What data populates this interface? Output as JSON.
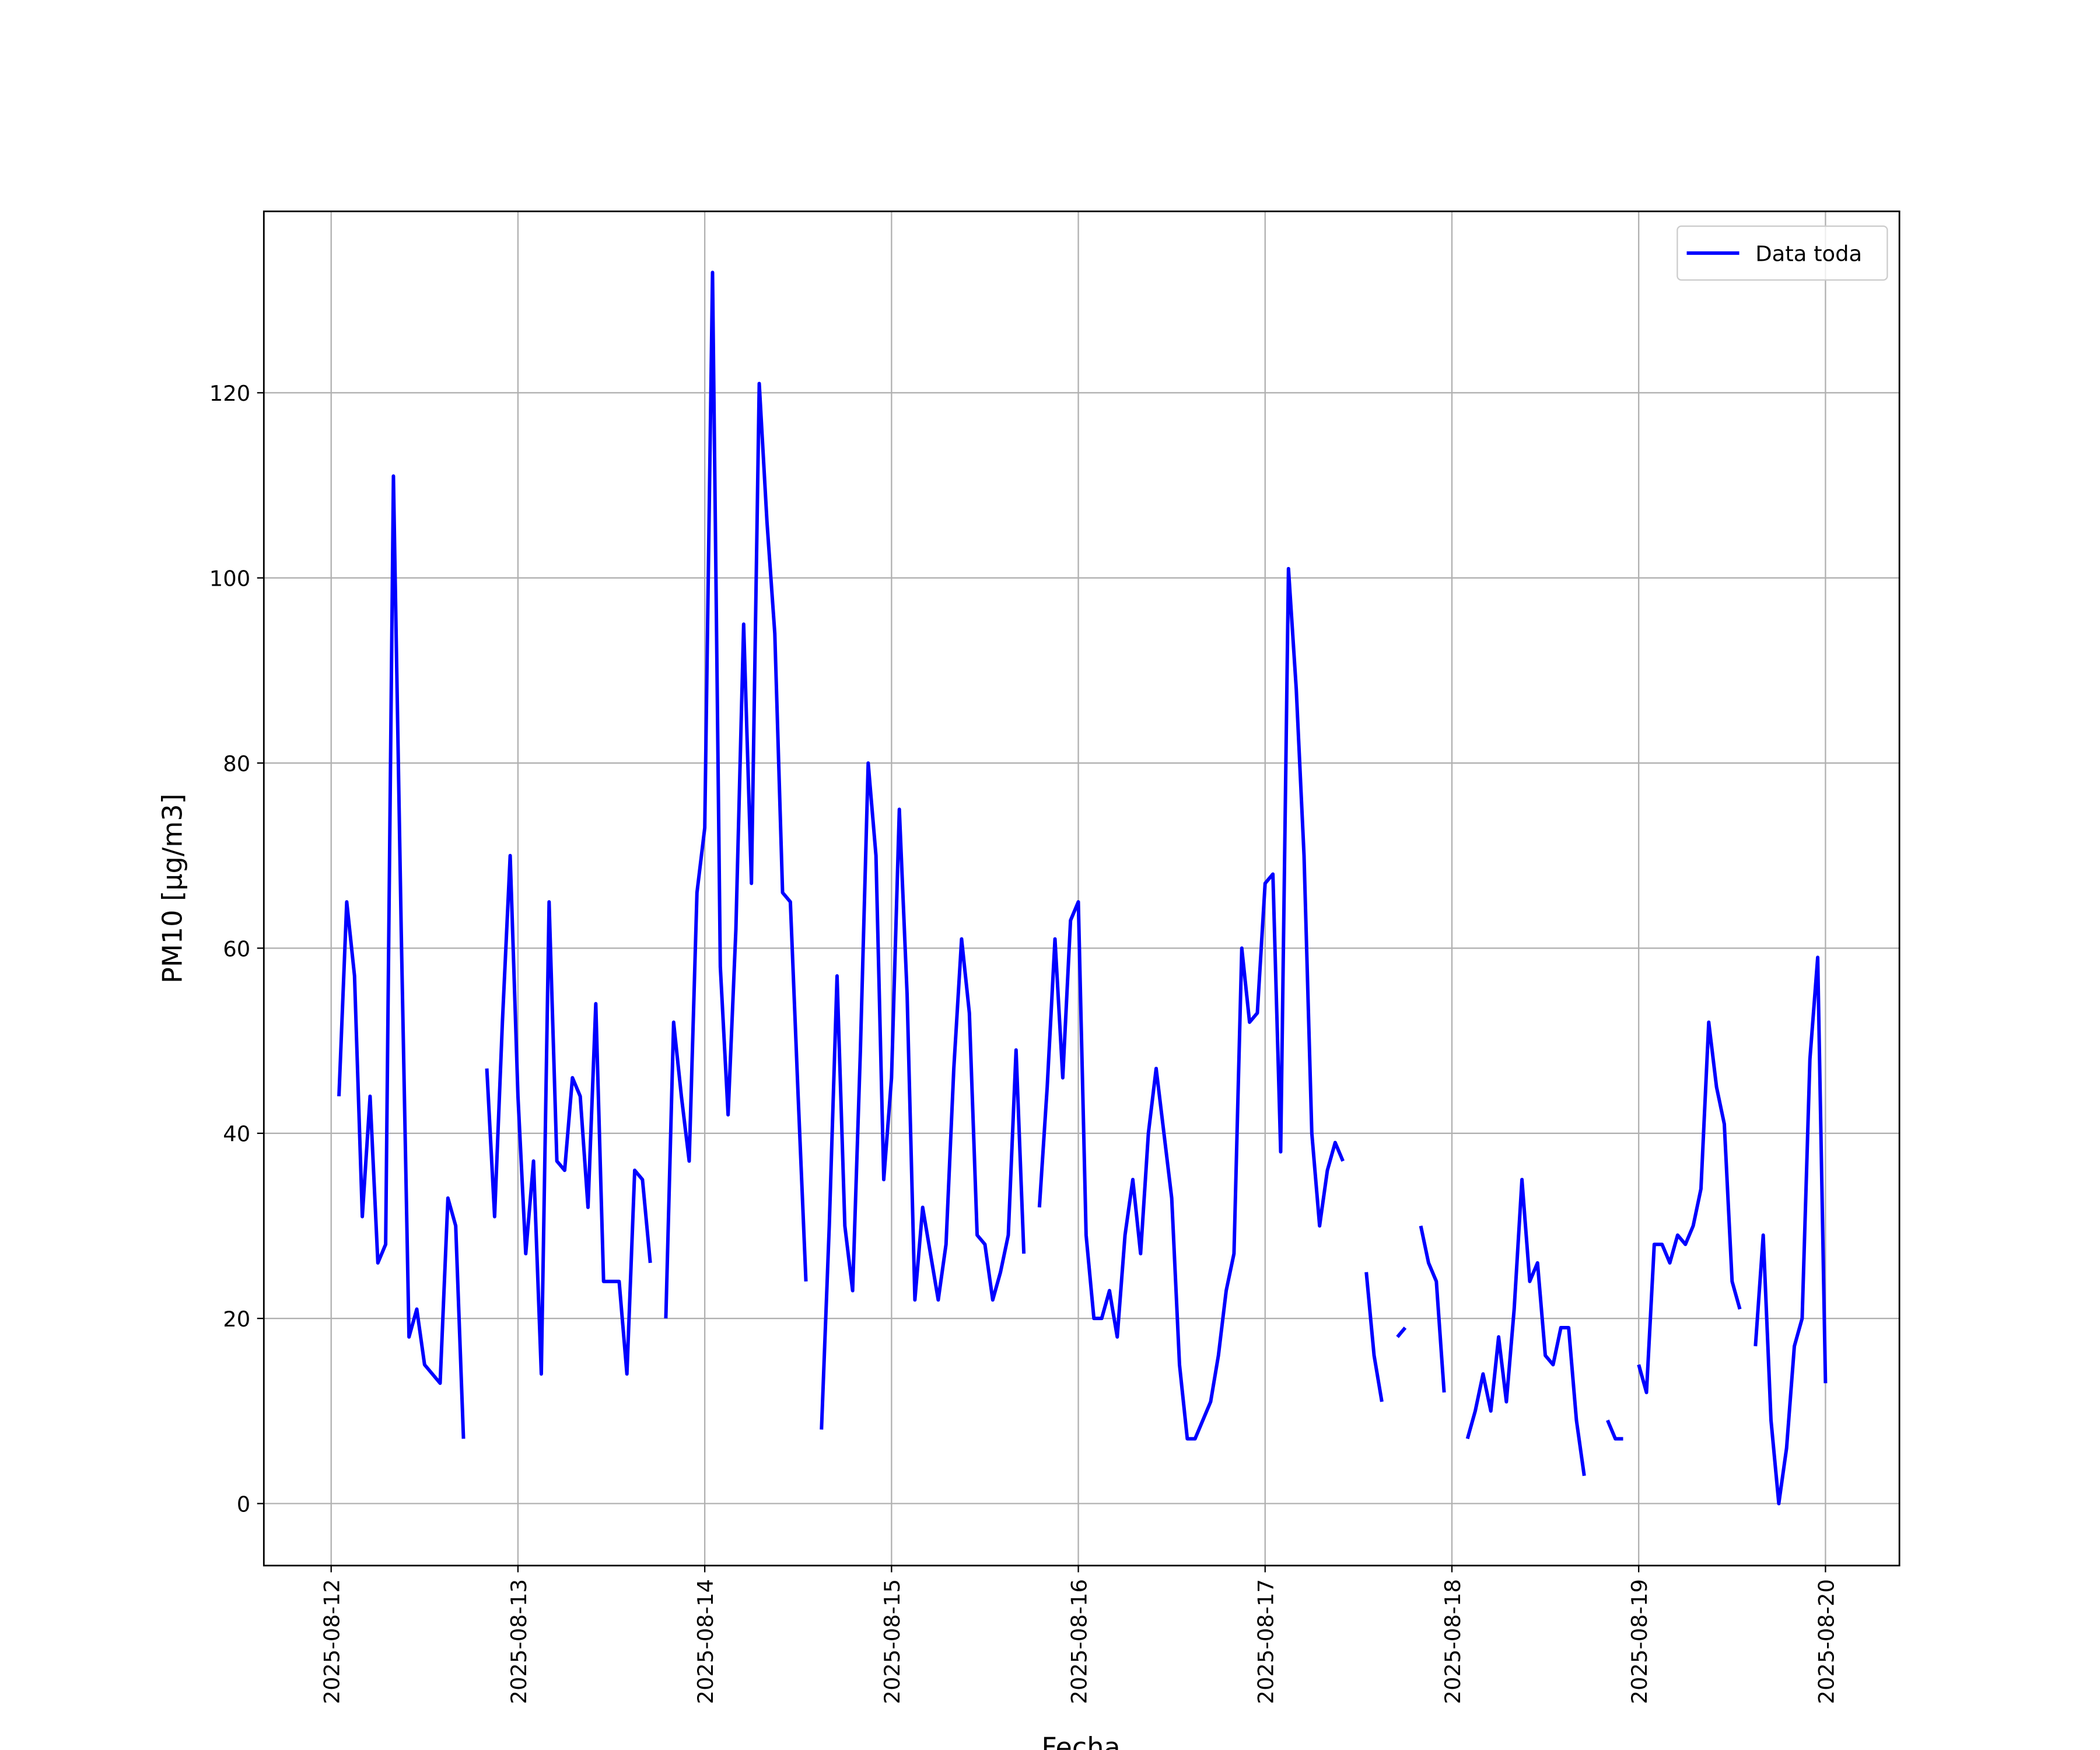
{
  "chart_data": {
    "type": "line",
    "x_label": "Fecha",
    "y_label": "PM10 [μg/m3]",
    "x": [
      "2025-08-12T01:00",
      "2025-08-12T02:00",
      "2025-08-12T03:00",
      "2025-08-12T04:00",
      "2025-08-12T05:00",
      "2025-08-12T06:00",
      "2025-08-12T07:00",
      "2025-08-12T08:00",
      "2025-08-12T09:00",
      "2025-08-12T10:00",
      "2025-08-12T11:00",
      "2025-08-12T12:00",
      "2025-08-12T13:00",
      "2025-08-12T14:00",
      "2025-08-12T15:00",
      "2025-08-12T16:00",
      "2025-08-12T17:00",
      "2025-08-12T18:00",
      "2025-08-12T19:00",
      "2025-08-12T20:00",
      "2025-08-12T21:00",
      "2025-08-12T22:00",
      "2025-08-12T23:00",
      "2025-08-13T00:00",
      "2025-08-13T01:00",
      "2025-08-13T02:00",
      "2025-08-13T03:00",
      "2025-08-13T04:00",
      "2025-08-13T05:00",
      "2025-08-13T06:00",
      "2025-08-13T07:00",
      "2025-08-13T08:00",
      "2025-08-13T09:00",
      "2025-08-13T10:00",
      "2025-08-13T11:00",
      "2025-08-13T12:00",
      "2025-08-13T13:00",
      "2025-08-13T14:00",
      "2025-08-13T15:00",
      "2025-08-13T16:00",
      "2025-08-13T17:00",
      "2025-08-13T18:00",
      "2025-08-13T19:00",
      "2025-08-13T20:00",
      "2025-08-13T21:00",
      "2025-08-13T22:00",
      "2025-08-13T23:00",
      "2025-08-14T00:00",
      "2025-08-14T01:00",
      "2025-08-14T02:00",
      "2025-08-14T03:00",
      "2025-08-14T04:00",
      "2025-08-14T05:00",
      "2025-08-14T06:00",
      "2025-08-14T07:00",
      "2025-08-14T08:00",
      "2025-08-14T09:00",
      "2025-08-14T10:00",
      "2025-08-14T11:00",
      "2025-08-14T12:00",
      "2025-08-14T13:00",
      "2025-08-14T14:00",
      "2025-08-14T15:00",
      "2025-08-14T16:00",
      "2025-08-14T17:00",
      "2025-08-14T18:00",
      "2025-08-14T19:00",
      "2025-08-14T20:00",
      "2025-08-14T21:00",
      "2025-08-14T22:00",
      "2025-08-14T23:00",
      "2025-08-15T00:00",
      "2025-08-15T01:00",
      "2025-08-15T02:00",
      "2025-08-15T03:00",
      "2025-08-15T04:00",
      "2025-08-15T05:00",
      "2025-08-15T06:00",
      "2025-08-15T07:00",
      "2025-08-15T08:00",
      "2025-08-15T09:00",
      "2025-08-15T10:00",
      "2025-08-15T11:00",
      "2025-08-15T12:00",
      "2025-08-15T13:00",
      "2025-08-15T14:00",
      "2025-08-15T15:00",
      "2025-08-15T16:00",
      "2025-08-15T17:00",
      "2025-08-15T18:00",
      "2025-08-15T19:00",
      "2025-08-15T20:00",
      "2025-08-15T21:00",
      "2025-08-15T22:00",
      "2025-08-15T23:00",
      "2025-08-16T00:00",
      "2025-08-16T01:00",
      "2025-08-16T02:00",
      "2025-08-16T03:00",
      "2025-08-16T04:00",
      "2025-08-16T05:00",
      "2025-08-16T06:00",
      "2025-08-16T07:00",
      "2025-08-16T08:00",
      "2025-08-16T09:00",
      "2025-08-16T10:00",
      "2025-08-16T11:00",
      "2025-08-16T12:00",
      "2025-08-16T13:00",
      "2025-08-16T14:00",
      "2025-08-16T15:00",
      "2025-08-16T16:00",
      "2025-08-16T17:00",
      "2025-08-16T18:00",
      "2025-08-16T19:00",
      "2025-08-16T20:00",
      "2025-08-16T21:00",
      "2025-08-16T22:00",
      "2025-08-16T23:00",
      "2025-08-17T00:00",
      "2025-08-17T01:00",
      "2025-08-17T02:00",
      "2025-08-17T03:00",
      "2025-08-17T04:00",
      "2025-08-17T05:00",
      "2025-08-17T06:00",
      "2025-08-17T07:00",
      "2025-08-17T08:00",
      "2025-08-17T09:00",
      "2025-08-17T10:00",
      "2025-08-17T11:00",
      "2025-08-17T12:00",
      "2025-08-17T13:00",
      "2025-08-17T14:00",
      "2025-08-17T15:00",
      "2025-08-17T16:00",
      "2025-08-17T17:00",
      "2025-08-17T18:00",
      "2025-08-17T19:00",
      "2025-08-17T20:00",
      "2025-08-17T21:00",
      "2025-08-17T22:00",
      "2025-08-17T23:00",
      "2025-08-18T00:00",
      "2025-08-18T01:00",
      "2025-08-18T02:00",
      "2025-08-18T03:00",
      "2025-08-18T04:00",
      "2025-08-18T05:00",
      "2025-08-18T06:00",
      "2025-08-18T07:00",
      "2025-08-18T08:00",
      "2025-08-18T09:00",
      "2025-08-18T10:00",
      "2025-08-18T11:00",
      "2025-08-18T12:00",
      "2025-08-18T13:00",
      "2025-08-18T14:00",
      "2025-08-18T15:00",
      "2025-08-18T16:00",
      "2025-08-18T17:00",
      "2025-08-18T18:00",
      "2025-08-18T19:00",
      "2025-08-18T20:00",
      "2025-08-18T21:00",
      "2025-08-18T22:00",
      "2025-08-18T23:00",
      "2025-08-19T00:00",
      "2025-08-19T01:00",
      "2025-08-19T02:00",
      "2025-08-19T03:00",
      "2025-08-19T04:00",
      "2025-08-19T05:00",
      "2025-08-19T06:00",
      "2025-08-19T07:00",
      "2025-08-19T08:00",
      "2025-08-19T09:00",
      "2025-08-19T10:00",
      "2025-08-19T11:00",
      "2025-08-19T12:00",
      "2025-08-19T13:00",
      "2025-08-19T14:00",
      "2025-08-19T15:00",
      "2025-08-19T16:00",
      "2025-08-19T17:00",
      "2025-08-19T18:00",
      "2025-08-19T19:00",
      "2025-08-19T20:00",
      "2025-08-19T21:00",
      "2025-08-19T22:00",
      "2025-08-19T23:00",
      "2025-08-20T00:00"
    ],
    "series": [
      {
        "name": "Data toda",
        "color": "#0000ff",
        "values": [
          44,
          65,
          57,
          31,
          44,
          26,
          28,
          111,
          62,
          18,
          21,
          15,
          14,
          13,
          33,
          30,
          7,
          null,
          null,
          47,
          31,
          52,
          70,
          44,
          27,
          37,
          14,
          65,
          37,
          36,
          46,
          44,
          32,
          54,
          24,
          24,
          24,
          14,
          36,
          35,
          26,
          null,
          20,
          52,
          44,
          37,
          66,
          73,
          133,
          58,
          42,
          62,
          95,
          67,
          121,
          106,
          94,
          66,
          65,
          44,
          24,
          null,
          8,
          30,
          57,
          30,
          23,
          49,
          80,
          70,
          35,
          46,
          75,
          55,
          22,
          32,
          27,
          22,
          28,
          47,
          61,
          53,
          29,
          28,
          22,
          25,
          29,
          49,
          27,
          null,
          32,
          45,
          61,
          46,
          63,
          65,
          29,
          20,
          20,
          23,
          18,
          29,
          35,
          27,
          40,
          47,
          40,
          33,
          15,
          7,
          7,
          9,
          11,
          16,
          23,
          27,
          60,
          52,
          53,
          67,
          68,
          38,
          101,
          88,
          70,
          40,
          30,
          36,
          39,
          37,
          null,
          null,
          25,
          16,
          11,
          null,
          18,
          19,
          null,
          30,
          26,
          24,
          12,
          null,
          null,
          7,
          10,
          14,
          10,
          18,
          11,
          21,
          35,
          24,
          26,
          16,
          15,
          19,
          19,
          9,
          3,
          null,
          null,
          9,
          7,
          7,
          null,
          15,
          12,
          28,
          28,
          26,
          29,
          28,
          30,
          34,
          52,
          45,
          41,
          24,
          21,
          null,
          17,
          29,
          9,
          0,
          6,
          17,
          20,
          48,
          59,
          13
        ]
      }
    ],
    "xlim": [
      "2025-08-11T15:21",
      "2025-08-20T09:30"
    ],
    "xticks": [
      "2025-08-12",
      "2025-08-13",
      "2025-08-14",
      "2025-08-15",
      "2025-08-16",
      "2025-08-17",
      "2025-08-18",
      "2025-08-19",
      "2025-08-20"
    ],
    "ylim": [
      -6.7,
      139.6
    ],
    "yticks": [
      0,
      20,
      40,
      60,
      80,
      100,
      120
    ],
    "grid": true,
    "legend": "upper right"
  }
}
